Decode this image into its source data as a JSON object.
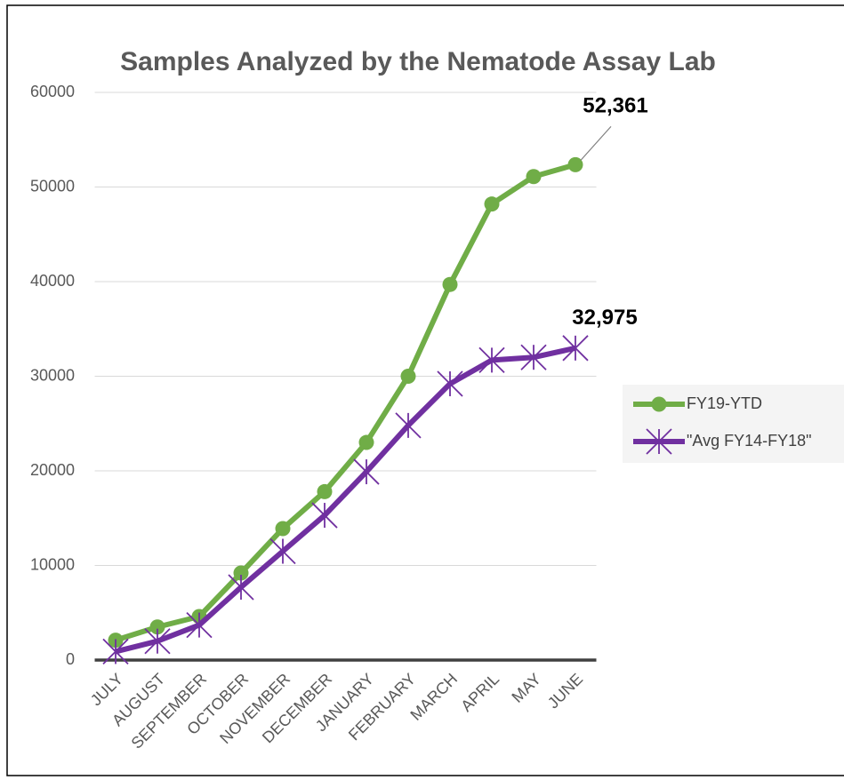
{
  "chart_data": {
    "type": "line",
    "title": "Samples Analyzed by the Nematode Assay Lab",
    "categories": [
      "JULY",
      "AUGUST",
      "SEPTEMBER",
      "OCTOBER",
      "NOVEMBER",
      "DECEMBER",
      "JANUARY",
      "FEBRUARY",
      "MARCH",
      "APRIL",
      "MAY",
      "JUNE"
    ],
    "series": [
      {
        "name": "FY19-YTD",
        "color": "#70ad47",
        "marker": "circle",
        "values": [
          2100,
          3500,
          4600,
          9200,
          13900,
          17800,
          23000,
          30000,
          39700,
          48200,
          51100,
          52361
        ],
        "value_labels": [
          null,
          null,
          null,
          null,
          null,
          null,
          null,
          null,
          null,
          null,
          null,
          "52,361"
        ]
      },
      {
        "name": "\"Avg FY14-FY18\"",
        "color": "#7030a0",
        "marker": "star",
        "values": [
          900,
          2000,
          3700,
          7700,
          11500,
          15300,
          19900,
          24800,
          29200,
          31700,
          32000,
          32975
        ],
        "value_labels": [
          null,
          null,
          null,
          null,
          null,
          null,
          null,
          null,
          null,
          null,
          null,
          "32,975"
        ]
      }
    ],
    "ylim": [
      0,
      60000
    ],
    "yticks": [
      0,
      10000,
      20000,
      30000,
      40000,
      50000,
      60000
    ],
    "grid": true,
    "legend": "right"
  }
}
